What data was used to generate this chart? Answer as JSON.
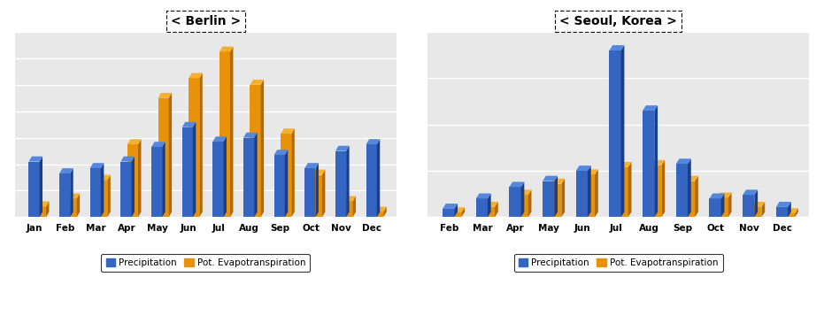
{
  "berlin": {
    "title": "< Berlin >",
    "months": [
      "Jan",
      "Feb",
      "Mar",
      "Apr",
      "May",
      "Jun",
      "Jul",
      "Aug",
      "Sep",
      "Oct",
      "Nov",
      "Dec"
    ],
    "precipitation": [
      42,
      33,
      37,
      42,
      53,
      68,
      57,
      60,
      47,
      37,
      50,
      55
    ],
    "evapotranspiration": [
      8,
      14,
      28,
      55,
      90,
      105,
      125,
      100,
      63,
      32,
      12,
      4
    ]
  },
  "seoul": {
    "title": "< Seoul, Korea >",
    "months": [
      "Feb",
      "Mar",
      "Apr",
      "May",
      "Jun",
      "Jul",
      "Aug",
      "Sep",
      "Oct",
      "Nov",
      "Dec"
    ],
    "precipitation": [
      18,
      40,
      65,
      78,
      100,
      360,
      230,
      115,
      40,
      48,
      22
    ],
    "evapotranspiration": [
      10,
      22,
      48,
      72,
      92,
      108,
      112,
      78,
      42,
      22,
      8
    ]
  },
  "bar_color_blue": "#3465C0",
  "bar_color_blue_top": "#5588DD",
  "bar_color_blue_side": "#1A3E8A",
  "bar_color_orange": "#E8920A",
  "bar_color_orange_top": "#F5B030",
  "bar_color_orange_side": "#B06A00",
  "legend_label_blue": "Precipitation",
  "legend_label_orange": "Pot. Evapotranspiration",
  "fig_bg": "#FFFFFF",
  "plot_bg": "#E8E8E8",
  "gridline_color": "#FFFFFF",
  "ylim_berlin": [
    0,
    140
  ],
  "ylim_seoul": [
    0,
    400
  ]
}
